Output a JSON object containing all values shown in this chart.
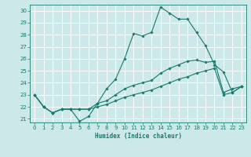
{
  "xlabel": "Humidex (Indice chaleur)",
  "ylabel": "",
  "bg_color": "#cce8e8",
  "grid_color": "#ffffff",
  "line_color": "#1a7a6e",
  "xlim": [
    -0.5,
    23.5
  ],
  "ylim": [
    20.7,
    30.5
  ],
  "xticks": [
    0,
    1,
    2,
    3,
    4,
    5,
    6,
    7,
    8,
    9,
    10,
    11,
    12,
    13,
    14,
    15,
    16,
    17,
    18,
    19,
    20,
    21,
    22,
    23
  ],
  "yticks": [
    21,
    22,
    23,
    24,
    25,
    26,
    27,
    28,
    29,
    30
  ],
  "series": [
    {
      "x": [
        0,
        1,
        2,
        3,
        4,
        5,
        6,
        7,
        8,
        9,
        10,
        11,
        12,
        13,
        14,
        15,
        16,
        17,
        18,
        19,
        20,
        21,
        22,
        23
      ],
      "y": [
        23.0,
        22.0,
        21.5,
        21.8,
        21.8,
        20.8,
        21.2,
        22.3,
        23.5,
        24.3,
        26.0,
        28.1,
        27.9,
        28.2,
        30.3,
        29.8,
        29.3,
        29.3,
        28.2,
        27.1,
        25.5,
        24.9,
        23.2,
        23.7
      ],
      "marker_x": [
        0,
        1,
        2,
        3,
        4,
        5,
        6,
        7,
        8,
        9,
        10,
        11,
        12,
        13,
        14,
        15,
        16,
        17,
        18,
        19,
        20,
        21,
        22,
        23
      ]
    },
    {
      "x": [
        0,
        1,
        2,
        3,
        4,
        5,
        6,
        7,
        8,
        9,
        10,
        11,
        12,
        13,
        14,
        15,
        16,
        17,
        18,
        19,
        20,
        21,
        22,
        23
      ],
      "y": [
        23.0,
        22.0,
        21.5,
        21.8,
        21.8,
        21.8,
        21.8,
        22.3,
        22.5,
        23.0,
        23.5,
        23.8,
        24.0,
        24.2,
        24.8,
        25.2,
        25.5,
        25.8,
        25.9,
        25.7,
        25.8,
        23.2,
        23.5,
        23.7
      ],
      "marker_x": [
        0,
        1,
        2,
        3,
        4,
        5,
        6,
        7,
        8,
        9,
        10,
        11,
        12,
        13,
        14,
        15,
        16,
        17,
        18,
        19,
        20,
        21,
        22,
        23
      ]
    },
    {
      "x": [
        0,
        1,
        2,
        3,
        4,
        5,
        6,
        7,
        8,
        9,
        10,
        11,
        12,
        13,
        14,
        15,
        16,
        17,
        18,
        19,
        20,
        21,
        22,
        23
      ],
      "y": [
        23.0,
        22.0,
        21.5,
        21.8,
        21.8,
        21.8,
        21.8,
        22.0,
        22.2,
        22.5,
        22.8,
        23.0,
        23.2,
        23.4,
        23.7,
        24.0,
        24.3,
        24.5,
        24.8,
        25.0,
        25.2,
        23.0,
        23.2,
        23.7
      ],
      "marker_x": [
        0,
        1,
        2,
        3,
        4,
        5,
        6,
        7,
        8,
        9,
        10,
        11,
        12,
        13,
        14,
        15,
        16,
        17,
        18,
        19,
        20,
        21,
        22,
        23
      ]
    }
  ]
}
